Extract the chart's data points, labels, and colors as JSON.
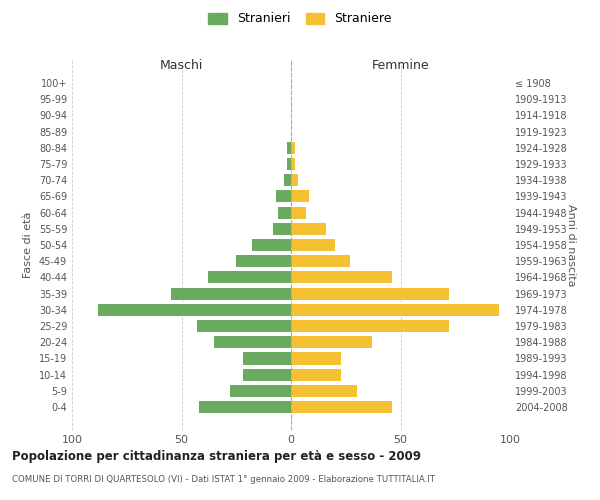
{
  "age_groups": [
    "100+",
    "95-99",
    "90-94",
    "85-89",
    "80-84",
    "75-79",
    "70-74",
    "65-69",
    "60-64",
    "55-59",
    "50-54",
    "45-49",
    "40-44",
    "35-39",
    "30-34",
    "25-29",
    "20-24",
    "15-19",
    "10-14",
    "5-9",
    "0-4"
  ],
  "birth_years": [
    "≤ 1908",
    "1909-1913",
    "1914-1918",
    "1919-1923",
    "1924-1928",
    "1929-1933",
    "1934-1938",
    "1939-1943",
    "1944-1948",
    "1949-1953",
    "1954-1958",
    "1959-1963",
    "1964-1968",
    "1969-1973",
    "1974-1978",
    "1979-1983",
    "1984-1988",
    "1989-1993",
    "1994-1998",
    "1999-2003",
    "2004-2008"
  ],
  "maschi": [
    0,
    0,
    0,
    0,
    2,
    2,
    3,
    7,
    6,
    8,
    18,
    25,
    38,
    55,
    88,
    43,
    35,
    22,
    22,
    28,
    42
  ],
  "femmine": [
    0,
    0,
    0,
    0,
    2,
    2,
    3,
    8,
    7,
    16,
    20,
    27,
    46,
    72,
    95,
    72,
    37,
    23,
    23,
    30,
    46
  ],
  "maschi_color": "#6aaa5e",
  "femmine_color": "#f5c132",
  "background_color": "#ffffff",
  "grid_color": "#cccccc",
  "title": "Popolazione per cittadinanza straniera per età e sesso - 2009",
  "subtitle": "COMUNE DI TORRI DI QUARTESOLO (VI) - Dati ISTAT 1° gennaio 2009 - Elaborazione TUTTITALIA.IT",
  "legend_maschi": "Stranieri",
  "legend_femmine": "Straniere",
  "xlabel_left": "Maschi",
  "xlabel_right": "Femmine",
  "ylabel_left": "Fasce di età",
  "ylabel_right": "Anni di nascita",
  "xlim": 100,
  "xticks": [
    -100,
    -50,
    0,
    50,
    100
  ],
  "xticklabels": [
    "100",
    "50",
    "0",
    "50",
    "100"
  ]
}
